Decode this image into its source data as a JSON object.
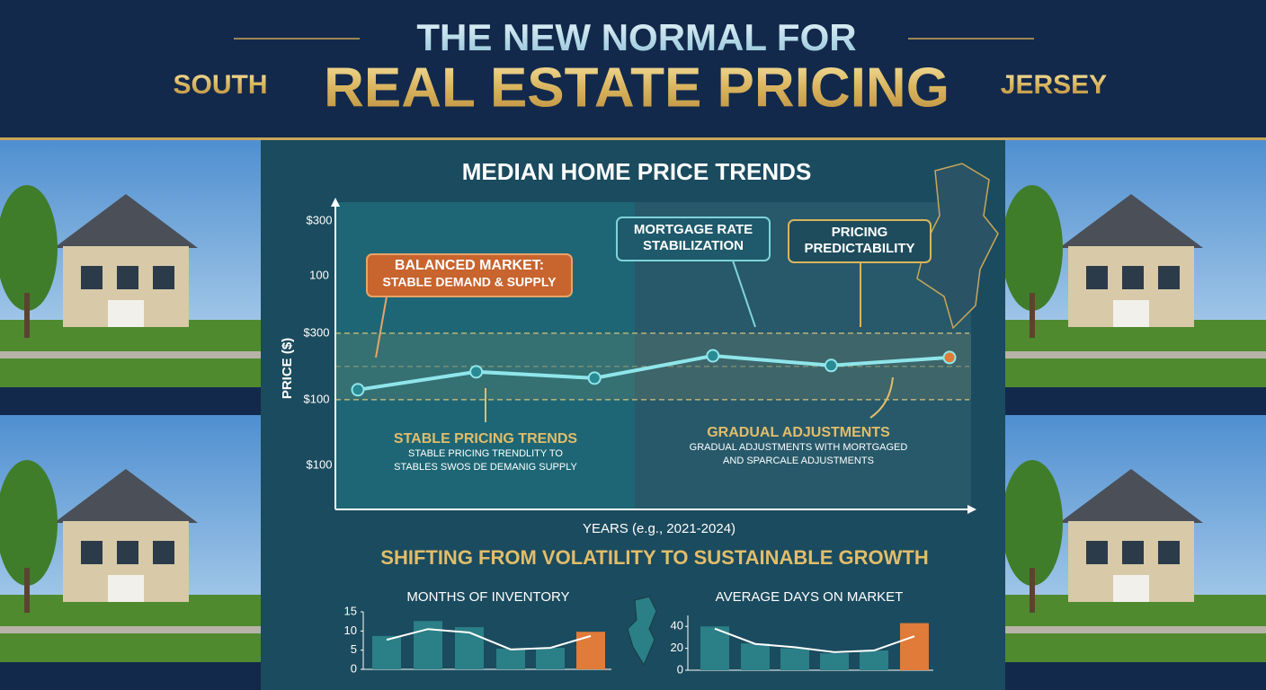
{
  "header": {
    "line1": "THE NEW NORMAL FOR",
    "left": "SOUTH",
    "main": "REAL ESTATE PRICING",
    "right": "JERSEY",
    "tagline": "SHIFTING FROM VOLATILITY TO SUSTAINABLE GROWTH"
  },
  "chart_data": [
    {
      "type": "line",
      "title": "MEDIAN HOME PRICE TRENDS",
      "ylabel": "PRICE ($)",
      "xlabel": "YEARS (e.g., 2021-2024)",
      "categories": [
        null,
        null,
        null,
        null,
        null,
        null
      ],
      "values": [
        130,
        184,
        165,
        232,
        203,
        227
      ],
      "color": "#8fe6ea",
      "marker_colors": [
        "#2a8a93",
        "#2a8a93",
        "#2a8a93",
        "#2a8a93",
        "#2a8a93",
        "#e07b39"
      ],
      "ylim": [
        -230,
        690
      ],
      "yticks": [
        {
          "value": 100,
          "label": "$100"
        },
        {
          "value": 300,
          "label": "$300"
        }
      ],
      "y_labels": [
        "$300",
        "100",
        "$100"
      ],
      "annotations": [
        {
          "lines": [
            "BALANCED MARKET:",
            "STABLE DEMAND & SUPPLY"
          ]
        },
        {
          "lines": [
            "MORTGAGE RATE",
            "STABILIZATION"
          ]
        },
        {
          "lines": [
            "PRICING",
            "PREDICTABILITY"
          ]
        },
        {
          "lines": [
            "STABLE PRICING TRENDS",
            "STABLE PRICING TRENDLITY TO",
            "STABLES SWOS DE DEMANIG SUPPLY"
          ]
        },
        {
          "lines": [
            "GRADUAL ADJUSTMENTS",
            "GRADUAL ADJUSTMENTS WITH MORTGAGED",
            "AND SPARCALE ADJUSTMENTS"
          ]
        }
      ]
    },
    {
      "type": "bar",
      "title": "MONTHS OF INVENTORY",
      "categories": [
        null,
        null,
        null,
        null,
        null,
        null
      ],
      "series": [
        {
          "type": "bar",
          "values": [
            8.7,
            12.6,
            11,
            5.4,
            5.6,
            9.8
          ],
          "colors": [
            "#2b7f86",
            "#2b7f86",
            "#2b7f86",
            "#2b7f86",
            "#2b7f86",
            "#e07b39"
          ]
        },
        {
          "type": "line",
          "values": [
            7.7,
            10.5,
            9.6,
            5.2,
            5.6,
            8.7
          ],
          "color": "#ffffff"
        }
      ],
      "ylim": [
        0,
        15
      ],
      "yticks": [
        0,
        5,
        10,
        15
      ]
    },
    {
      "type": "bar",
      "title": "AVERAGE DAYS ON MARKET",
      "categories": [
        null,
        null,
        null,
        null,
        null,
        null
      ],
      "series": [
        {
          "type": "bar",
          "values": [
            40,
            24.5,
            20,
            15.5,
            18,
            43
          ],
          "colors": [
            "#2b7f86",
            "#2b7f86",
            "#2b7f86",
            "#2b7f86",
            "#2b7f86",
            "#e07b39"
          ]
        },
        {
          "type": "line",
          "values": [
            38,
            24,
            21,
            16.5,
            18,
            31
          ],
          "color": "#ffffff"
        }
      ],
      "ylim": [
        0,
        50
      ],
      "yticks": [
        0,
        20,
        40
      ]
    }
  ]
}
